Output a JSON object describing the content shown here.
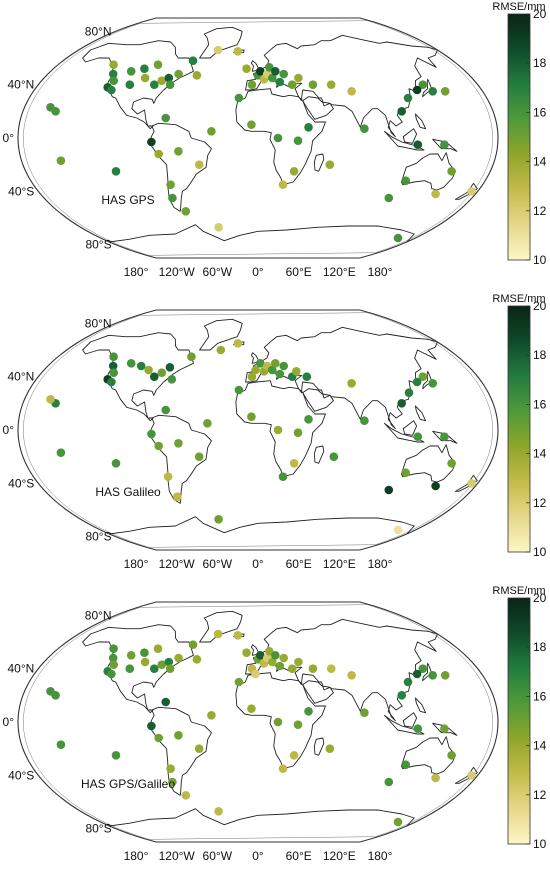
{
  "colorbar": {
    "title": "RMSE/mm",
    "ticks": [
      "20",
      "18",
      "16",
      "14",
      "12",
      "10"
    ],
    "colors": [
      "#fdf6c8",
      "#e6d88a",
      "#c3bb4a",
      "#8fa62a",
      "#4f9a3a",
      "#237d3f",
      "#0f4a2a",
      "#0a2414"
    ]
  },
  "axes": {
    "lat_ticks": [
      "80°N",
      "40°N",
      "0°",
      "40°S",
      "80°S"
    ],
    "lon_ticks": [
      "180°",
      "120°W",
      "60°W",
      "0°",
      "60°E",
      "120°E",
      "180°"
    ]
  },
  "panels": [
    {
      "label": "HAS GPS",
      "stations": [
        [
          -130,
          55,
          14
        ],
        [
          -124,
          48,
          17
        ],
        [
          -122,
          38,
          18
        ],
        [
          -120,
          43,
          16
        ],
        [
          -118,
          36,
          17
        ],
        [
          -110,
          50,
          16
        ],
        [
          -105,
          40,
          17
        ],
        [
          -100,
          52,
          17
        ],
        [
          -95,
          45,
          14
        ],
        [
          -90,
          55,
          15
        ],
        [
          -85,
          40,
          17
        ],
        [
          -80,
          43,
          14
        ],
        [
          -75,
          45,
          18
        ],
        [
          -72,
          40,
          16
        ],
        [
          -68,
          48,
          15
        ],
        [
          -60,
          58,
          17
        ],
        [
          -52,
          47,
          14
        ],
        [
          -40,
          66,
          12
        ],
        [
          -20,
          65,
          13
        ],
        [
          -10,
          52,
          14
        ],
        [
          -5,
          40,
          15
        ],
        [
          0,
          47,
          16
        ],
        [
          2,
          50,
          19
        ],
        [
          5,
          44,
          13
        ],
        [
          8,
          48,
          12
        ],
        [
          10,
          53,
          16
        ],
        [
          12,
          45,
          16
        ],
        [
          15,
          50,
          18
        ],
        [
          18,
          42,
          17
        ],
        [
          22,
          48,
          16
        ],
        [
          28,
          40,
          15
        ],
        [
          34,
          45,
          14
        ],
        [
          45,
          40,
          15
        ],
        [
          60,
          40,
          14
        ],
        [
          140,
          35,
          17
        ],
        [
          135,
          40,
          16
        ],
        [
          128,
          36,
          19
        ],
        [
          118,
          30,
          17
        ],
        [
          110,
          20,
          18
        ],
        [
          150,
          35,
          15
        ],
        [
          -155,
          20,
          16
        ],
        [
          -160,
          23,
          16
        ],
        [
          -150,
          -17,
          15
        ],
        [
          -110,
          -25,
          17
        ],
        [
          -80,
          -3,
          19
        ],
        [
          -70,
          15,
          16
        ],
        [
          -75,
          -12,
          14
        ],
        [
          -60,
          -10,
          15
        ],
        [
          -45,
          -20,
          13
        ],
        [
          -70,
          -35,
          15
        ],
        [
          -72,
          -45,
          16
        ],
        [
          -65,
          -55,
          15
        ],
        [
          -35,
          5,
          15
        ],
        [
          -15,
          30,
          16
        ],
        [
          -5,
          10,
          15
        ],
        [
          15,
          0,
          16
        ],
        [
          30,
          -2,
          16
        ],
        [
          38,
          8,
          17
        ],
        [
          28,
          -25,
          14
        ],
        [
          20,
          -35,
          13
        ],
        [
          55,
          -20,
          14
        ],
        [
          80,
          7,
          16
        ],
        [
          120,
          -5,
          18
        ],
        [
          140,
          -5,
          16
        ],
        [
          117,
          -32,
          16
        ],
        [
          150,
          -25,
          15
        ],
        [
          147,
          -42,
          13
        ],
        [
          175,
          -40,
          12
        ],
        [
          110,
          -45,
          16
        ],
        [
          160,
          -75,
          16
        ],
        [
          -40,
          -67,
          12
        ],
        [
          75,
          35,
          13
        ]
      ]
    },
    {
      "label": "HAS Galileo",
      "stations": [
        [
          -130,
          55,
          16
        ],
        [
          -124,
          48,
          18
        ],
        [
          -122,
          38,
          19
        ],
        [
          -120,
          43,
          16
        ],
        [
          -118,
          36,
          17
        ],
        [
          -110,
          50,
          16
        ],
        [
          -100,
          48,
          17
        ],
        [
          -92,
          45,
          14
        ],
        [
          -85,
          40,
          18
        ],
        [
          -80,
          43,
          15
        ],
        [
          -75,
          47,
          18
        ],
        [
          -70,
          38,
          16
        ],
        [
          -60,
          55,
          15
        ],
        [
          -35,
          60,
          14
        ],
        [
          -20,
          65,
          13
        ],
        [
          -5,
          40,
          14
        ],
        [
          -2,
          45,
          14
        ],
        [
          2,
          50,
          16
        ],
        [
          5,
          44,
          14
        ],
        [
          8,
          48,
          13
        ],
        [
          12,
          45,
          16
        ],
        [
          15,
          50,
          15
        ],
        [
          18,
          42,
          16
        ],
        [
          22,
          48,
          16
        ],
        [
          28,
          40,
          17
        ],
        [
          32,
          44,
          14
        ],
        [
          40,
          40,
          17
        ],
        [
          -155,
          20,
          17
        ],
        [
          -160,
          23,
          13
        ],
        [
          -150,
          -17,
          16
        ],
        [
          -110,
          -25,
          16
        ],
        [
          -80,
          -3,
          16
        ],
        [
          -70,
          15,
          16
        ],
        [
          -75,
          -12,
          15
        ],
        [
          -60,
          -10,
          15
        ],
        [
          -45,
          -20,
          15
        ],
        [
          -72,
          -35,
          13
        ],
        [
          -70,
          -50,
          13
        ],
        [
          -38,
          5,
          15
        ],
        [
          -15,
          30,
          16
        ],
        [
          -5,
          10,
          15
        ],
        [
          15,
          0,
          14
        ],
        [
          30,
          -2,
          15
        ],
        [
          38,
          8,
          16
        ],
        [
          28,
          -25,
          13
        ],
        [
          20,
          -35,
          16
        ],
        [
          58,
          -20,
          16
        ],
        [
          80,
          7,
          16
        ],
        [
          135,
          40,
          15
        ],
        [
          128,
          36,
          17
        ],
        [
          118,
          28,
          17
        ],
        [
          110,
          20,
          18
        ],
        [
          140,
          35,
          16
        ],
        [
          120,
          -5,
          16
        ],
        [
          140,
          -5,
          16
        ],
        [
          117,
          -32,
          15
        ],
        [
          150,
          -25,
          15
        ],
        [
          147,
          -42,
          19
        ],
        [
          175,
          -40,
          12
        ],
        [
          110,
          -45,
          19
        ],
        [
          160,
          -75,
          11
        ],
        [
          -40,
          -67,
          15
        ],
        [
          75,
          35,
          14
        ]
      ]
    },
    {
      "label": "HAS GPS/Galileo",
      "stations": [
        [
          -130,
          55,
          16
        ],
        [
          -124,
          48,
          16
        ],
        [
          -122,
          38,
          17
        ],
        [
          -120,
          43,
          15
        ],
        [
          -118,
          36,
          16
        ],
        [
          -110,
          50,
          15
        ],
        [
          -105,
          40,
          16
        ],
        [
          -100,
          52,
          16
        ],
        [
          -95,
          45,
          14
        ],
        [
          -90,
          55,
          14
        ],
        [
          -85,
          40,
          17
        ],
        [
          -80,
          43,
          15
        ],
        [
          -75,
          45,
          17
        ],
        [
          -72,
          40,
          15
        ],
        [
          -68,
          48,
          14
        ],
        [
          -60,
          58,
          15
        ],
        [
          -52,
          47,
          14
        ],
        [
          -40,
          66,
          13
        ],
        [
          -20,
          65,
          13
        ],
        [
          -10,
          52,
          14
        ],
        [
          -5,
          40,
          13
        ],
        [
          -2,
          36,
          12
        ],
        [
          0,
          47,
          15
        ],
        [
          2,
          50,
          18
        ],
        [
          5,
          44,
          13
        ],
        [
          8,
          48,
          12
        ],
        [
          10,
          53,
          14
        ],
        [
          12,
          45,
          14
        ],
        [
          15,
          50,
          16
        ],
        [
          18,
          42,
          15
        ],
        [
          22,
          48,
          14
        ],
        [
          28,
          40,
          14
        ],
        [
          34,
          45,
          14
        ],
        [
          45,
          40,
          14
        ],
        [
          60,
          40,
          13
        ],
        [
          140,
          35,
          16
        ],
        [
          135,
          40,
          16
        ],
        [
          128,
          36,
          18
        ],
        [
          118,
          30,
          17
        ],
        [
          110,
          20,
          17
        ],
        [
          150,
          35,
          15
        ],
        [
          -155,
          20,
          16
        ],
        [
          -160,
          23,
          16
        ],
        [
          -150,
          -17,
          16
        ],
        [
          -110,
          -25,
          16
        ],
        [
          -80,
          -3,
          18
        ],
        [
          -70,
          15,
          18
        ],
        [
          -75,
          -12,
          15
        ],
        [
          -60,
          -10,
          15
        ],
        [
          -45,
          -20,
          14
        ],
        [
          -70,
          -35,
          14
        ],
        [
          -72,
          -45,
          15
        ],
        [
          -65,
          -55,
          13
        ],
        [
          -35,
          5,
          14
        ],
        [
          -15,
          30,
          15
        ],
        [
          -5,
          10,
          14
        ],
        [
          15,
          0,
          15
        ],
        [
          30,
          -2,
          15
        ],
        [
          38,
          8,
          16
        ],
        [
          28,
          -25,
          13
        ],
        [
          20,
          -35,
          13
        ],
        [
          55,
          -20,
          14
        ],
        [
          80,
          7,
          15
        ],
        [
          120,
          -5,
          16
        ],
        [
          140,
          -5,
          15
        ],
        [
          117,
          -32,
          16
        ],
        [
          150,
          -25,
          15
        ],
        [
          147,
          -42,
          13
        ],
        [
          175,
          -40,
          12
        ],
        [
          110,
          -45,
          16
        ],
        [
          160,
          -75,
          15
        ],
        [
          -40,
          -67,
          13
        ],
        [
          75,
          35,
          13
        ]
      ]
    }
  ]
}
